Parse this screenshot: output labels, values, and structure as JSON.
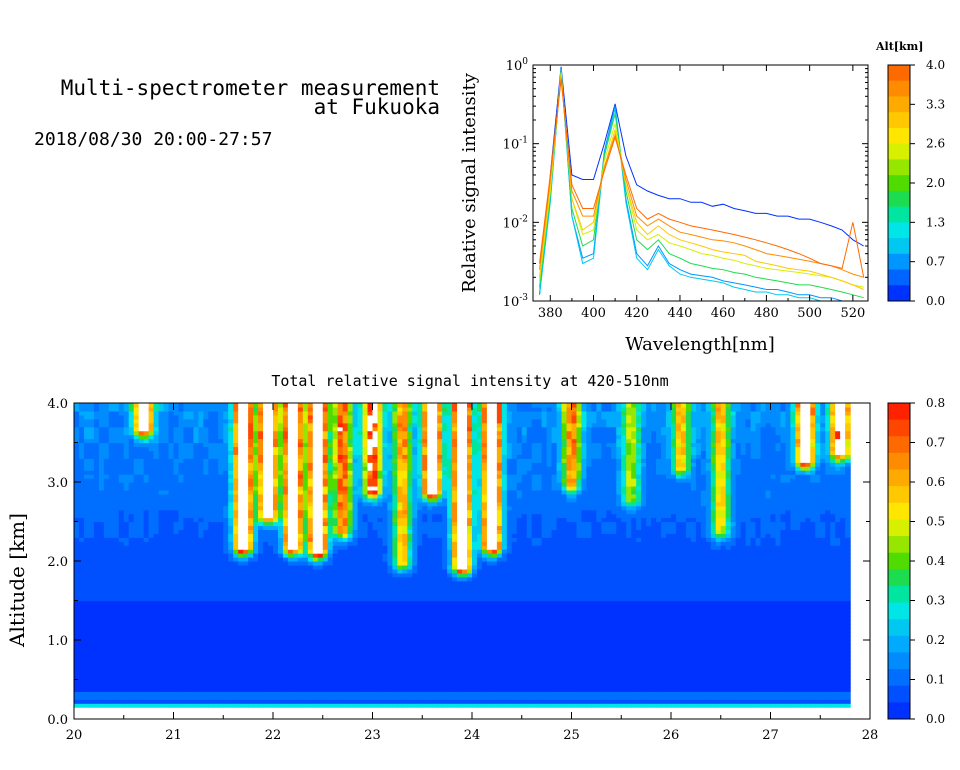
{
  "header": {
    "title_line1": "Multi-spectrometer measurement",
    "title_line2": "at Fukuoka",
    "period": "2018/08/30 20:00-27:57"
  },
  "chart_data": [
    {
      "type": "line",
      "xlabel": "Wavelength[nm]",
      "ylabel": "Relative signal intensity",
      "xlim": [
        372,
        527
      ],
      "ylim": [
        0.001,
        1
      ],
      "yscale": "log",
      "x_ticks": [
        "380",
        "400",
        "420",
        "440",
        "460",
        "480",
        "500",
        "520"
      ],
      "y_ticks": [
        "10^0",
        "10^-1",
        "10^-2",
        "10^-3"
      ],
      "x": [
        375,
        380,
        385,
        390,
        395,
        400,
        405,
        410,
        415,
        420,
        425,
        430,
        435,
        440,
        445,
        450,
        455,
        460,
        465,
        470,
        475,
        480,
        485,
        490,
        495,
        500,
        505,
        510,
        515,
        520,
        525
      ],
      "colorbar": {
        "title": "Alt[km]",
        "ticks": [
          "4.0",
          "3.3",
          "2.6",
          "2.0",
          "1.3",
          "0.7",
          "0.0"
        ],
        "colors": [
          "#ff6a00",
          "#ff8c00",
          "#ffaa00",
          "#ffc800",
          "#ffe600",
          "#d6f000",
          "#96e600",
          "#50dc00",
          "#1edc50",
          "#00e6a0",
          "#00e6e6",
          "#00c8f0",
          "#0096ff",
          "#0064ff",
          "#0032ff"
        ]
      },
      "series": [
        {
          "color": "#0032ff",
          "values": [
            0.0012,
            0.04,
            0.95,
            0.04,
            0.035,
            0.035,
            0.1,
            0.32,
            0.07,
            0.03,
            0.025,
            0.022,
            0.02,
            0.02,
            0.018,
            0.018,
            0.016,
            0.017,
            0.015,
            0.014,
            0.013,
            0.013,
            0.012,
            0.012,
            0.011,
            0.011,
            0.01,
            0.009,
            0.008,
            0.006,
            0.005
          ]
        },
        {
          "color": "#0096ff",
          "values": [
            0.0012,
            0.02,
            0.9,
            0.012,
            0.0035,
            0.004,
            0.08,
            0.3,
            0.02,
            0.004,
            0.0028,
            0.005,
            0.003,
            0.0025,
            0.0022,
            0.0021,
            0.002,
            0.0018,
            0.0017,
            0.0016,
            0.0015,
            0.0014,
            0.0014,
            0.0013,
            0.0012,
            0.0012,
            0.0011,
            0.0011,
            0.001,
            0.001,
            0.001
          ]
        },
        {
          "color": "#00c8f0",
          "values": [
            0.0012,
            0.018,
            0.88,
            0.012,
            0.003,
            0.0035,
            0.07,
            0.28,
            0.018,
            0.0035,
            0.0025,
            0.0045,
            0.0028,
            0.0022,
            0.002,
            0.0019,
            0.0018,
            0.0017,
            0.0015,
            0.0014,
            0.0013,
            0.0013,
            0.0012,
            0.0012,
            0.0011,
            0.0011,
            0.001,
            0.001,
            0.001,
            0.001,
            0.001
          ]
        },
        {
          "color": "#1edc50",
          "values": [
            0.0015,
            0.022,
            0.85,
            0.015,
            0.005,
            0.006,
            0.07,
            0.24,
            0.025,
            0.006,
            0.0045,
            0.006,
            0.004,
            0.0035,
            0.003,
            0.0028,
            0.0026,
            0.0025,
            0.0023,
            0.0022,
            0.002,
            0.0019,
            0.0018,
            0.0017,
            0.0016,
            0.0016,
            0.0015,
            0.0014,
            0.0013,
            0.0012,
            0.0011
          ]
        },
        {
          "color": "#d6f000",
          "values": [
            0.0018,
            0.025,
            0.8,
            0.02,
            0.007,
            0.008,
            0.06,
            0.18,
            0.03,
            0.008,
            0.006,
            0.007,
            0.0055,
            0.005,
            0.0045,
            0.004,
            0.0038,
            0.0035,
            0.0033,
            0.003,
            0.0028,
            0.0026,
            0.0025,
            0.0024,
            0.0023,
            0.0022,
            0.0021,
            0.002,
            0.0018,
            0.0016,
            0.0015
          ]
        },
        {
          "color": "#ffc800",
          "values": [
            0.002,
            0.03,
            0.75,
            0.02,
            0.008,
            0.01,
            0.05,
            0.15,
            0.03,
            0.01,
            0.007,
            0.009,
            0.007,
            0.006,
            0.0055,
            0.005,
            0.0045,
            0.0042,
            0.004,
            0.0038,
            0.0032,
            0.003,
            0.0028,
            0.0026,
            0.0025,
            0.0024,
            0.0022,
            0.002,
            0.0018,
            0.0016,
            0.0014
          ]
        },
        {
          "color": "#ff8c00",
          "values": [
            0.0025,
            0.035,
            0.7,
            0.025,
            0.012,
            0.012,
            0.05,
            0.13,
            0.035,
            0.012,
            0.009,
            0.011,
            0.009,
            0.0075,
            0.007,
            0.0065,
            0.006,
            0.0058,
            0.0055,
            0.005,
            0.0045,
            0.004,
            0.0038,
            0.0036,
            0.0034,
            0.0032,
            0.003,
            0.0028,
            0.0025,
            0.0022,
            0.002
          ]
        },
        {
          "color": "#ff6a00",
          "values": [
            0.003,
            0.04,
            0.65,
            0.03,
            0.015,
            0.015,
            0.045,
            0.12,
            0.04,
            0.015,
            0.011,
            0.013,
            0.011,
            0.01,
            0.009,
            0.0085,
            0.008,
            0.0075,
            0.007,
            0.0065,
            0.006,
            0.0055,
            0.005,
            0.0045,
            0.004,
            0.0035,
            0.003,
            0.0028,
            0.0026,
            0.01,
            0.002
          ]
        }
      ]
    },
    {
      "type": "heatmap",
      "title": "Total relative signal intensity at 420-510nm",
      "xlabel": "",
      "ylabel": "Altitude [km]",
      "xlim": [
        20,
        28
      ],
      "ylim": [
        0,
        4
      ],
      "data_time_range": [
        20,
        27.8
      ],
      "data_altitude_range": [
        0.15,
        4.0
      ],
      "x_ticks": [
        "20",
        "21",
        "22",
        "23",
        "24",
        "25",
        "26",
        "27",
        "28"
      ],
      "y_ticks": [
        "0.0",
        "1.0",
        "2.0",
        "3.0",
        "4.0"
      ],
      "colorbar": {
        "ticks": [
          "0.8",
          "0.7",
          "0.6",
          "0.5",
          "0.4",
          "0.3",
          "0.2",
          "0.1",
          "0.0"
        ],
        "range": [
          0,
          0.8
        ],
        "saturation_color": "#ffffff",
        "colors": [
          "#0032ff",
          "#0050ff",
          "#006eff",
          "#008cff",
          "#00aaff",
          "#00c8f0",
          "#00e6e6",
          "#00e6a0",
          "#1edc50",
          "#50dc00",
          "#96e600",
          "#d6f000",
          "#ffe600",
          "#ffc800",
          "#ffaa00",
          "#ff8c00",
          "#ff6a00",
          "#ff4600",
          "#ff2200"
        ]
      },
      "background_level_low_altitude": 0.02,
      "background_level_mid_altitude": 0.05,
      "surface_band": [
        {
          "altitude_km": 0.17,
          "level": 0.25
        },
        {
          "altitude_km": 0.3,
          "level": 0.12
        }
      ],
      "cloud_events": [
        {
          "time": 20.7,
          "base_km": 3.7,
          "peak": 0.9
        },
        {
          "time": 21.7,
          "base_km": 2.2,
          "peak": 1.0
        },
        {
          "time": 21.95,
          "base_km": 2.6,
          "peak": 0.95
        },
        {
          "time": 22.2,
          "base_km": 2.2,
          "peak": 1.0
        },
        {
          "time": 22.45,
          "base_km": 2.15,
          "peak": 1.0
        },
        {
          "time": 22.7,
          "base_km": 2.4,
          "peak": 0.6
        },
        {
          "time": 23.0,
          "base_km": 2.9,
          "peak": 0.7
        },
        {
          "time": 23.3,
          "base_km": 2.0,
          "peak": 0.5
        },
        {
          "time": 23.6,
          "base_km": 2.9,
          "peak": 1.0
        },
        {
          "time": 23.9,
          "base_km": 1.95,
          "peak": 1.0
        },
        {
          "time": 24.2,
          "base_km": 2.2,
          "peak": 1.0
        },
        {
          "time": 25.0,
          "base_km": 3.0,
          "peak": 0.55
        },
        {
          "time": 25.6,
          "base_km": 2.8,
          "peak": 0.35
        },
        {
          "time": 26.1,
          "base_km": 3.2,
          "peak": 0.45
        },
        {
          "time": 26.5,
          "base_km": 2.4,
          "peak": 0.45
        },
        {
          "time": 27.35,
          "base_km": 3.3,
          "peak": 0.9
        },
        {
          "time": 27.7,
          "base_km": 3.4,
          "peak": 0.85
        }
      ]
    }
  ]
}
